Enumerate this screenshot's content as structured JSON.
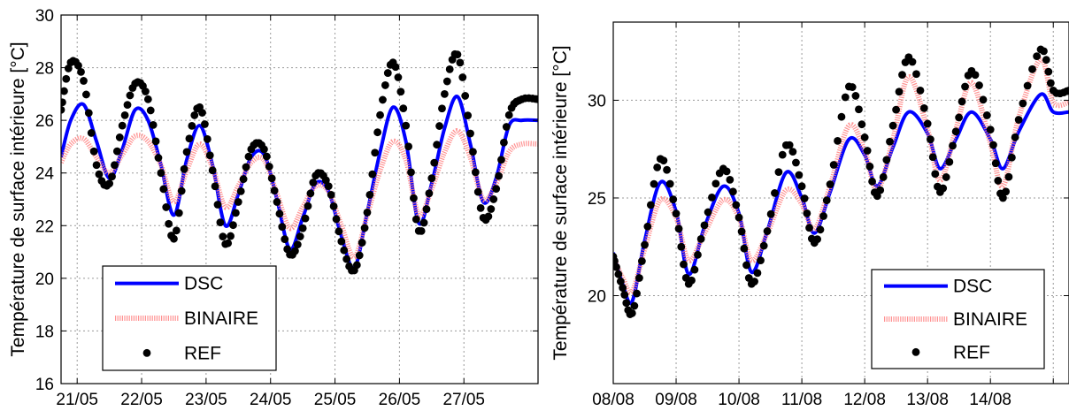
{
  "chart_data": [
    {
      "type": "line",
      "ylabel": "Température de surface intérieure [°C]",
      "xlabel": "",
      "ylim": [
        16,
        30
      ],
      "yticks": [
        16,
        18,
        20,
        22,
        24,
        26,
        28,
        30
      ],
      "xlim": [
        0,
        7.4
      ],
      "xticks": [
        0.25,
        1.25,
        2.25,
        3.25,
        4.25,
        5.25,
        6.25
      ],
      "xtick_labels": [
        "21/05",
        "22/05",
        "23/05",
        "24/05",
        "25/05",
        "26/05",
        "27/05"
      ],
      "grid": true,
      "legend": {
        "placement": "bottom-left",
        "entries": [
          "DSC",
          "BINAIRE",
          "REF"
        ]
      },
      "series": [
        {
          "name": "DSC",
          "color": "#0000ff",
          "x": [
            0.0,
            0.15,
            0.35,
            0.55,
            0.75,
            0.95,
            1.15,
            1.35,
            1.55,
            1.75,
            1.95,
            2.15,
            2.35,
            2.55,
            2.75,
            2.95,
            3.15,
            3.35,
            3.55,
            3.75,
            3.95,
            4.15,
            4.35,
            4.55,
            4.75,
            4.95,
            5.15,
            5.35,
            5.55,
            5.75,
            5.95,
            6.15,
            6.35,
            6.55,
            6.75,
            6.95,
            7.15,
            7.4
          ],
          "y": [
            24.6,
            26.0,
            26.6,
            25.2,
            23.8,
            24.9,
            26.4,
            26.0,
            24.3,
            22.4,
            24.5,
            25.8,
            24.3,
            22.0,
            23.2,
            24.6,
            24.7,
            23.0,
            21.1,
            22.3,
            23.6,
            23.3,
            21.6,
            20.4,
            22.5,
            24.8,
            26.5,
            25.2,
            22.1,
            23.6,
            25.7,
            26.9,
            25.1,
            22.9,
            23.8,
            25.8,
            26.0,
            26.0
          ]
        },
        {
          "name": "BINAIRE",
          "color": "#ff8080",
          "x": [
            0.0,
            0.15,
            0.35,
            0.55,
            0.75,
            0.95,
            1.15,
            1.35,
            1.55,
            1.75,
            1.95,
            2.15,
            2.35,
            2.55,
            2.75,
            2.95,
            3.15,
            3.35,
            3.55,
            3.75,
            3.95,
            4.15,
            4.35,
            4.55,
            4.75,
            4.95,
            5.15,
            5.35,
            5.55,
            5.75,
            5.95,
            6.15,
            6.35,
            6.55,
            6.75,
            6.95,
            7.15,
            7.4
          ],
          "y": [
            24.4,
            25.1,
            25.3,
            24.6,
            24.0,
            24.7,
            25.4,
            25.2,
            24.3,
            22.9,
            24.1,
            25.1,
            24.2,
            22.7,
            23.5,
            24.4,
            24.5,
            23.2,
            21.9,
            22.7,
            23.5,
            23.3,
            22.0,
            20.8,
            22.4,
            24.1,
            25.2,
            24.5,
            22.4,
            23.4,
            24.8,
            25.6,
            24.6,
            23.0,
            23.6,
            24.8,
            25.1,
            25.1
          ]
        },
        {
          "name": "REF",
          "color": "#000000",
          "x": [
            0.0,
            0.15,
            0.35,
            0.55,
            0.75,
            0.95,
            1.15,
            1.35,
            1.55,
            1.75,
            1.95,
            2.15,
            2.35,
            2.55,
            2.75,
            2.95,
            3.15,
            3.35,
            3.55,
            3.75,
            3.95,
            4.15,
            4.35,
            4.55,
            4.75,
            4.95,
            5.15,
            5.35,
            5.55,
            5.75,
            5.95,
            6.15,
            6.35,
            6.55,
            6.75,
            6.95,
            7.15,
            7.4
          ],
          "y": [
            26.4,
            28.2,
            27.5,
            24.3,
            23.6,
            25.8,
            27.4,
            26.8,
            24.0,
            21.5,
            24.8,
            26.5,
            24.1,
            21.3,
            22.9,
            24.9,
            24.9,
            22.9,
            20.9,
            21.9,
            23.9,
            23.5,
            21.4,
            20.3,
            22.5,
            26.2,
            28.2,
            25.8,
            21.8,
            23.8,
            27.0,
            28.5,
            25.5,
            22.3,
            23.4,
            26.2,
            26.8,
            26.8
          ]
        }
      ]
    },
    {
      "type": "line",
      "ylabel": "Température de surface intérieure [°C]",
      "xlabel": "",
      "ylim": [
        15.5,
        34
      ],
      "yticks": [
        20,
        25,
        30
      ],
      "xlim": [
        0,
        7.25
      ],
      "xticks": [
        0,
        1,
        2,
        3,
        4,
        5,
        6,
        7
      ],
      "xtick_labels": [
        "08/08",
        "09/08",
        "10/08",
        "11/08",
        "12/08",
        "13/08",
        "14/08",
        ""
      ],
      "grid": true,
      "legend": {
        "placement": "bottom-right",
        "entries": [
          "DSC",
          "BINAIRE",
          "REF"
        ]
      },
      "series": [
        {
          "name": "DSC",
          "color": "#0000ff",
          "x": [
            0.0,
            0.15,
            0.3,
            0.5,
            0.75,
            1.0,
            1.2,
            1.45,
            1.75,
            2.0,
            2.2,
            2.45,
            2.75,
            3.0,
            3.2,
            3.45,
            3.75,
            4.0,
            4.2,
            4.45,
            4.7,
            5.0,
            5.2,
            5.45,
            5.7,
            6.0,
            6.2,
            6.45,
            6.8,
            7.0,
            7.25
          ],
          "y": [
            22.2,
            20.6,
            19.7,
            22.8,
            25.8,
            24.3,
            21.1,
            23.5,
            25.6,
            24.2,
            21.2,
            23.3,
            26.3,
            25.0,
            23.2,
            25.3,
            28.0,
            27.2,
            25.6,
            27.6,
            29.4,
            28.3,
            26.5,
            28.0,
            29.4,
            28.0,
            26.5,
            28.4,
            30.3,
            29.4,
            29.4
          ]
        },
        {
          "name": "BINAIRE",
          "color": "#ff8080",
          "x": [
            0.0,
            0.15,
            0.3,
            0.5,
            0.75,
            1.0,
            1.2,
            1.45,
            1.75,
            2.0,
            2.2,
            2.45,
            2.75,
            3.0,
            3.2,
            3.45,
            3.75,
            4.0,
            4.2,
            4.45,
            4.7,
            5.0,
            5.2,
            5.45,
            5.7,
            6.0,
            6.2,
            6.45,
            6.8,
            7.0,
            7.25
          ],
          "y": [
            22.0,
            20.9,
            20.2,
            22.4,
            24.9,
            24.0,
            21.8,
            23.2,
            24.9,
            24.0,
            21.8,
            23.2,
            25.4,
            24.7,
            23.4,
            25.6,
            28.7,
            27.4,
            25.4,
            28.0,
            31.2,
            28.5,
            25.9,
            28.5,
            30.9,
            27.8,
            25.6,
            29.1,
            32.1,
            29.9,
            29.9
          ]
        },
        {
          "name": "REF",
          "color": "#000000",
          "x": [
            0.0,
            0.15,
            0.3,
            0.5,
            0.75,
            1.0,
            1.2,
            1.45,
            1.75,
            2.0,
            2.2,
            2.45,
            2.75,
            3.0,
            3.2,
            3.45,
            3.75,
            4.0,
            4.2,
            4.45,
            4.7,
            5.0,
            5.2,
            5.45,
            5.7,
            6.0,
            6.2,
            6.45,
            6.8,
            7.0,
            7.25
          ],
          "y": [
            22.0,
            20.4,
            19.1,
            22.6,
            27.0,
            24.2,
            20.6,
            23.6,
            26.5,
            24.0,
            20.6,
            23.3,
            27.7,
            25.6,
            22.7,
            25.7,
            30.7,
            28.1,
            25.1,
            28.7,
            32.2,
            28.8,
            25.3,
            28.4,
            31.5,
            28.5,
            25.0,
            29.0,
            32.6,
            30.5,
            30.5
          ]
        }
      ]
    }
  ]
}
